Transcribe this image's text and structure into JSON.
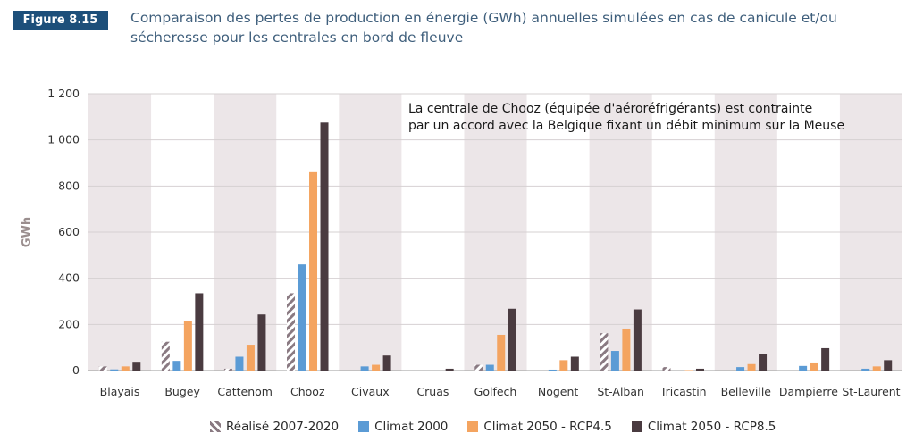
{
  "figure": {
    "badge": "Figure 8.15",
    "title": "Comparaison des pertes de production en énergie (GWh) annuelles simulées en cas de canicule et/ou sécheresse pour les centrales en bord de fleuve",
    "badge_color": "#1d4f7a"
  },
  "chart_data": {
    "type": "bar",
    "ylabel": "GWh",
    "ylim": [
      0,
      1200
    ],
    "yticks": [
      "0",
      "200",
      "400",
      "600",
      "800",
      "1 000",
      "1 200"
    ],
    "grid": true,
    "legend_position": "bottom",
    "annotation": [
      "La centrale de Chooz (équipée d'aéroréfrigérants) est contrainte",
      "par un accord avec la Belgique fixant un débit minimum sur la Meuse"
    ],
    "categories": [
      "Blayais",
      "Bugey",
      "Cattenom",
      "Chooz",
      "Civaux",
      "Cruas",
      "Golfech",
      "Nogent",
      "St-Alban",
      "Tricastin",
      "Belleville",
      "Dampierre",
      "St-Laurent"
    ],
    "series": [
      {
        "name": "Réalisé 2007-2020",
        "color": "#8a7a82",
        "pattern": "hatched",
        "values": [
          18,
          125,
          8,
          335,
          0,
          0,
          25,
          0,
          162,
          15,
          0,
          0,
          0
        ]
      },
      {
        "name": "Climat 2000",
        "color": "#5b9bd5",
        "values": [
          5,
          42,
          60,
          460,
          18,
          0,
          25,
          4,
          85,
          0,
          15,
          20,
          8
        ]
      },
      {
        "name": "Climat 2050 - RCP4.5",
        "color": "#f4a460",
        "values": [
          18,
          215,
          112,
          860,
          25,
          0,
          155,
          45,
          182,
          2,
          28,
          35,
          18
        ]
      },
      {
        "name": "Climat 2050 - RCP8.5",
        "color": "#4a3b40",
        "values": [
          38,
          335,
          243,
          1075,
          65,
          8,
          268,
          60,
          265,
          8,
          70,
          97,
          45
        ]
      }
    ]
  }
}
